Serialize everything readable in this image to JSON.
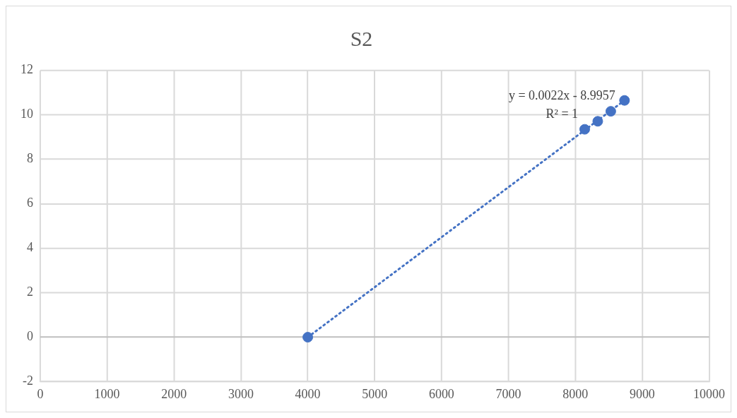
{
  "chart_data": {
    "type": "scatter",
    "title": "S2",
    "xlim": [
      0,
      10000
    ],
    "xticks": [
      0,
      1000,
      2000,
      3000,
      4000,
      5000,
      6000,
      7000,
      8000,
      9000,
      10000
    ],
    "ylim": [
      -2,
      12
    ],
    "yticks": [
      -2,
      0,
      2,
      4,
      6,
      8,
      10,
      12
    ],
    "grid": true,
    "legend": false,
    "marker": "circle",
    "series": [
      {
        "type": "scatter",
        "color": "#4472c4",
        "x": [
          4000,
          8140,
          8335,
          8530,
          8735
        ],
        "values": [
          0,
          9.35,
          9.71,
          10.16,
          10.65
        ]
      },
      {
        "type": "line",
        "color": "#4472c4",
        "line_style": "dotted",
        "marker": "none",
        "x": [
          4000,
          8735
        ],
        "values": [
          0,
          10.65
        ]
      }
    ],
    "annotations": [
      "y = 0.0022x - 8.9957",
      "R² = 1"
    ]
  }
}
